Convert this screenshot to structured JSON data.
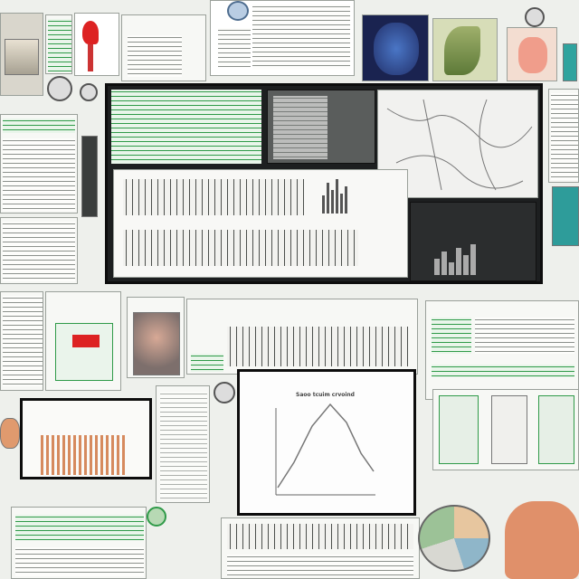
{
  "center_chart": {
    "title": "Saoo tcuim crvoind"
  },
  "colors": {
    "accent_green": "#2f9a48",
    "monitor_black": "#1d1f20",
    "paper": "#f7f8f5",
    "skin_orange": "#e09a6e"
  },
  "icons": [
    "gauge-icon",
    "magnifier-icon",
    "red-bird-icon",
    "brain-icon",
    "leaf-icon",
    "face-icon",
    "pie-icon",
    "knob-icon"
  ]
}
